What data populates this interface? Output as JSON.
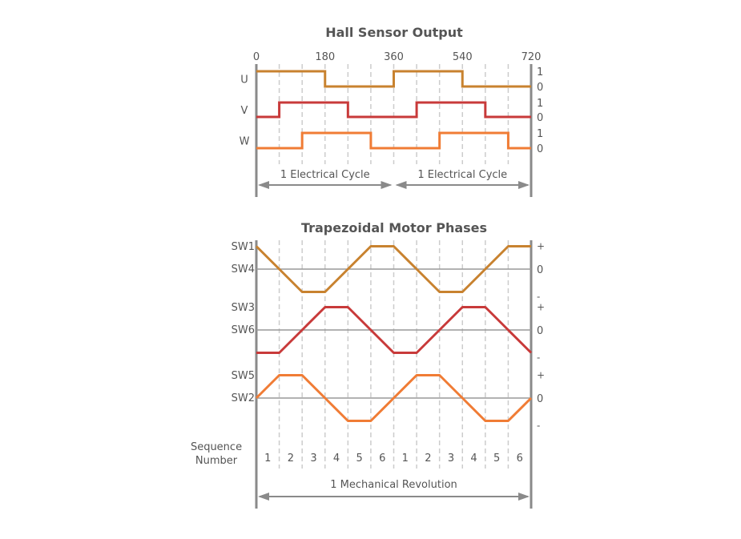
{
  "hall": {
    "title": "Hall Sensor Output",
    "angle_ticks": [
      "0",
      "180",
      "360",
      "540",
      "720"
    ],
    "signals": [
      {
        "name": "U",
        "color": "#c8822f",
        "levels": [
          1,
          1,
          1,
          0,
          0,
          0,
          1,
          1,
          1,
          0,
          0,
          0
        ]
      },
      {
        "name": "V",
        "color": "#c83a3a",
        "levels": [
          0,
          1,
          1,
          1,
          0,
          0,
          0,
          1,
          1,
          1,
          0,
          0
        ]
      },
      {
        "name": "W",
        "color": "#f07c35",
        "levels": [
          0,
          0,
          1,
          1,
          1,
          0,
          0,
          0,
          1,
          1,
          1,
          0
        ]
      }
    ],
    "level_labels": [
      "1",
      "0"
    ],
    "cycle_labels": [
      "1 Electrical Cycle",
      "1 Electrical Cycle"
    ]
  },
  "phases": {
    "title": "Trapezoidal Motor Phases",
    "traces": [
      {
        "labels": [
          "SW1",
          "SW4"
        ],
        "color": "#c8822f",
        "values": [
          1,
          0,
          -1,
          -1,
          0,
          1,
          1,
          0,
          -1,
          -1,
          0,
          1,
          1
        ]
      },
      {
        "labels": [
          "SW3",
          "SW6"
        ],
        "color": "#c83a3a",
        "values": [
          -1,
          -1,
          0,
          1,
          1,
          0,
          -1,
          -1,
          0,
          1,
          1,
          0,
          -1
        ]
      },
      {
        "labels": [
          "SW5",
          "SW2"
        ],
        "color": "#f07c35",
        "values": [
          0,
          1,
          1,
          0,
          -1,
          -1,
          0,
          1,
          1,
          0,
          -1,
          -1,
          0
        ]
      }
    ],
    "polarity_labels": [
      "+",
      "0",
      "-"
    ],
    "sequence_label": [
      "Sequence",
      "Number"
    ],
    "sequence": [
      "1",
      "2",
      "3",
      "4",
      "5",
      "6",
      "1",
      "2",
      "3",
      "4",
      "5",
      "6"
    ],
    "revolution_label": "1 Mechanical Revolution"
  },
  "colors": {
    "axis": "#8a8a8a",
    "grid": "#cccccc",
    "text": "#555555"
  }
}
